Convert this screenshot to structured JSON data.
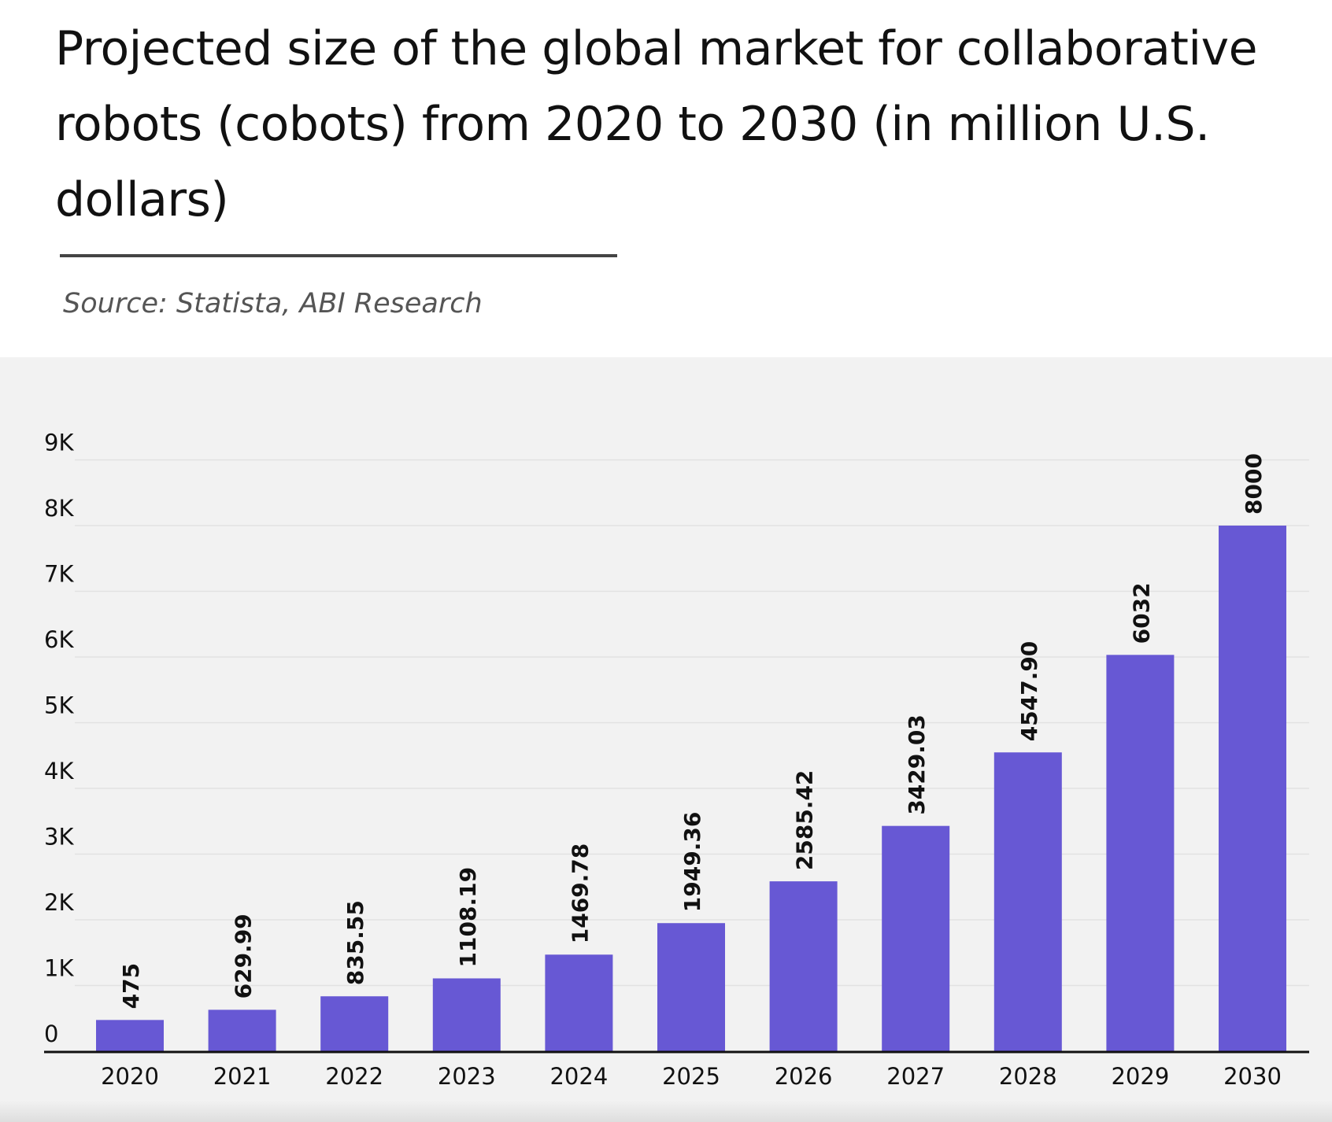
{
  "title": "Projected size of the global market for collaborative robots (cobots) from 2020 to 2030 (in million U.S. dollars)",
  "source": "Source: Statista, ABI Research",
  "colors": {
    "bar": "#6758d4",
    "grid": "#e2e2e2",
    "axis": "#111111",
    "panel": "#f2f2f2",
    "text": "#111111"
  },
  "chart_data": {
    "type": "bar",
    "title": "Projected size of the global market for collaborative robots (cobots) from 2020 to 2030 (in million U.S. dollars)",
    "categories": [
      "2020",
      "2021",
      "2022",
      "2023",
      "2024",
      "2025",
      "2026",
      "2027",
      "2028",
      "2029",
      "2030"
    ],
    "values": [
      475,
      629.99,
      835.55,
      1108.19,
      1469.78,
      1949.36,
      2585.42,
      3429.03,
      4547.9,
      6032,
      8000
    ],
    "value_labels": [
      "475",
      "629.99",
      "835.55",
      "1108.19",
      "1469.78",
      "1949.36",
      "2585.42",
      "3429.03",
      "4547.90",
      "6032",
      "8000"
    ],
    "xlabel": "",
    "ylabel": "",
    "ylim": [
      0,
      9000
    ],
    "yticks": [
      0,
      1000,
      2000,
      3000,
      4000,
      5000,
      6000,
      7000,
      8000,
      9000
    ],
    "ytick_labels": [
      "0",
      "1K",
      "2K",
      "3K",
      "4K",
      "5K",
      "6K",
      "7K",
      "8K",
      "9K"
    ],
    "grid": true,
    "legend": "none"
  }
}
